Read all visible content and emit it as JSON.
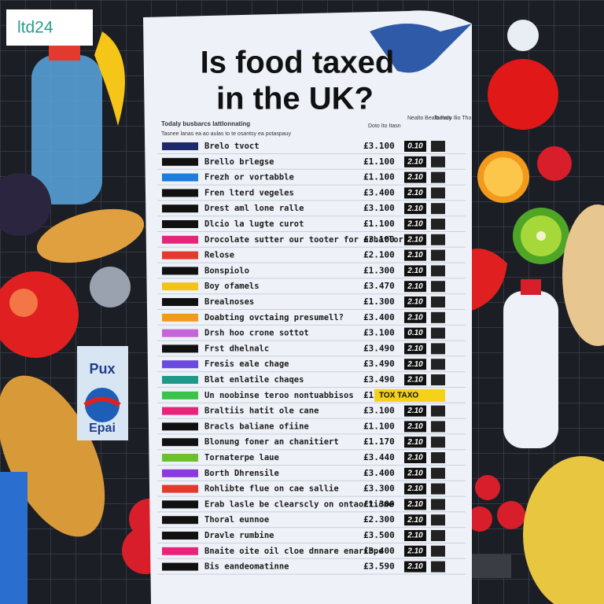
{
  "logo": "ltd24",
  "title": [
    "Is food taxed",
    "in the UK?"
  ],
  "header": {
    "line1": "Todaly busbarcs lattlonnating",
    "line2": "Tasnee lanas ea ao aulas to te osantsy ea potaspauy",
    "columns": [
      "Doto Ito Itasn",
      "Nealto Bealo Pary",
      "Tacado Ilio Tho"
    ]
  },
  "rows": [
    {
      "tag_color": "#1c2a6b",
      "label": "Brelo tvoct",
      "price": "£3.100",
      "rate": "0.10"
    },
    {
      "tag_color": "#111111",
      "label": "Brello brlegse",
      "price": "£1.100",
      "rate": "2.10"
    },
    {
      "tag_color": "#1e7be0",
      "label": "Frezh or vortabble",
      "price": "£1.100",
      "rate": "2.10"
    },
    {
      "tag_color": "#111111",
      "label": "Fren lterd vegeles",
      "price": "£3.400",
      "rate": "2.10"
    },
    {
      "tag_color": "#111111",
      "label": "Drest aml lone ralle",
      "price": "£3.100",
      "rate": "2.10"
    },
    {
      "tag_color": "#111111",
      "label": "Dlcio la lugte curot",
      "price": "£1.100",
      "rate": "2.10"
    },
    {
      "tag_color": "#e8237a",
      "label": "Drocolate sutter our tooter for orhatlor",
      "price": "£3.100",
      "rate": "2.10"
    },
    {
      "tag_color": "#e23b2e",
      "label": "Relose",
      "price": "£2.100",
      "rate": "2.10"
    },
    {
      "tag_color": "#111111",
      "label": "Bonspiolo",
      "price": "£1.300",
      "rate": "2.10"
    },
    {
      "tag_color": "#f2c318",
      "label": "Boy ofamels",
      "price": "£3.470",
      "rate": "2.10"
    },
    {
      "tag_color": "#111111",
      "label": "Brealnoses",
      "price": "£1.300",
      "rate": "2.10"
    },
    {
      "tag_color": "#f29a1c",
      "label": "Doabting ovctaing presumell?",
      "price": "£3.400",
      "rate": "2.10"
    },
    {
      "tag_color": "#c466d8",
      "label": "Drsh hoo crone sottot",
      "price": "£3.100",
      "rate": "0.10"
    },
    {
      "tag_color": "#111111",
      "label": "Frst dhelnalc",
      "price": "£3.490",
      "rate": "2.10"
    },
    {
      "tag_color": "#6a4ae0",
      "label": "Fresis eale chage",
      "price": "£3.490",
      "rate": "2.10"
    },
    {
      "tag_color": "#1f9a8a",
      "label": "Blat enlatile chaqes",
      "price": "£3.490",
      "rate": "2.10"
    },
    {
      "tag_color": "#3cc24a",
      "label": "Un noobinse teroo nontuabbisos",
      "price": "£1",
      "rate": "TOX TAXO"
    },
    {
      "tag_color": "#e8237a",
      "label": "Braltiis hatit ole cane",
      "price": "£3.100",
      "rate": "2.10"
    },
    {
      "tag_color": "#111111",
      "label": "Bracls baliane ofiine",
      "price": "£1.100",
      "rate": "2.10"
    },
    {
      "tag_color": "#111111",
      "label": "Blonung foner an chanitiert",
      "price": "£1.170",
      "rate": "2.10"
    },
    {
      "tag_color": "#6cc02e",
      "label": "Tornaterpe laue",
      "price": "£3.440",
      "rate": "2.10"
    },
    {
      "tag_color": "#8a3ae0",
      "label": "Borth Dhrensile",
      "price": "£3.400",
      "rate": "2.10"
    },
    {
      "tag_color": "#e23b2e",
      "label": "Rohlibte flue on cae sallie",
      "price": "£3.300",
      "rate": "2.10"
    },
    {
      "tag_color": "#111111",
      "label": "Erab lasle be clearscly on ontaoctione",
      "price": "£1.300",
      "rate": "2.10"
    },
    {
      "tag_color": "#111111",
      "label": "Thoral eunnoe",
      "price": "£2.300",
      "rate": "2.10"
    },
    {
      "tag_color": "#111111",
      "label": "Dravle rumbine",
      "price": "£3.500",
      "rate": "2.10"
    },
    {
      "tag_color": "#e8237a",
      "label": "Bnaite oite oil cloe dnnare enaribpe",
      "price": "£3.400",
      "rate": "2.10"
    },
    {
      "tag_color": "#111111",
      "label": "Bis eandeomatinne",
      "price": "£3.590",
      "rate": "2.10"
    }
  ],
  "carton": {
    "brand": "Pux",
    "label": "Epai"
  }
}
